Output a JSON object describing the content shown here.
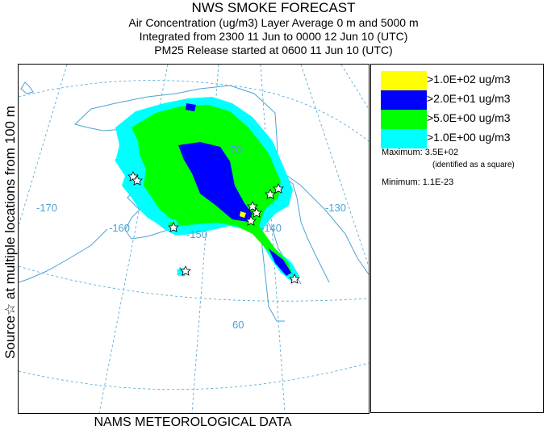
{
  "header": {
    "title": "NWS SMOKE FORECAST",
    "line2": "Air Concentration (ug/m3) Layer Average    0 m and  5000 m",
    "line3": "Integrated from 2300 11 Jun to 0000 12 Jun 10 (UTC)",
    "line4": "PM25 Release started at 0600 11 Jun 10 (UTC)"
  },
  "side_label": "Source☆  at multiple locations    from   100 m",
  "footer": "NAMS METEOROLOGICAL DATA",
  "map": {
    "longitude_labels": [
      "-170",
      "-160",
      "-150",
      "-140",
      "-130"
    ],
    "latitude_labels": [
      "70",
      "60"
    ],
    "colors": {
      "land_outline": "#4aa3d4",
      "graticule": "#4aa3d4",
      "level_1": "#00ffff",
      "level_5": "#00ff00",
      "level_20": "#0000ff",
      "level_100": "#ffff00"
    }
  },
  "legend": {
    "entries": [
      {
        "label": ">1.0E+02 ug/m3",
        "color": "#ffff00"
      },
      {
        "label": ">2.0E+01 ug/m3",
        "color": "#0000ff"
      },
      {
        "label": ">5.0E+00 ug/m3",
        "color": "#00ff00"
      },
      {
        "label": ">1.0E+00 ug/m3",
        "color": "#00ffff"
      }
    ],
    "maximum": "Maximum: 3.5E+02",
    "maximum_note": "(identified as a square)",
    "minimum": "Minimum: 1.1E-23"
  }
}
